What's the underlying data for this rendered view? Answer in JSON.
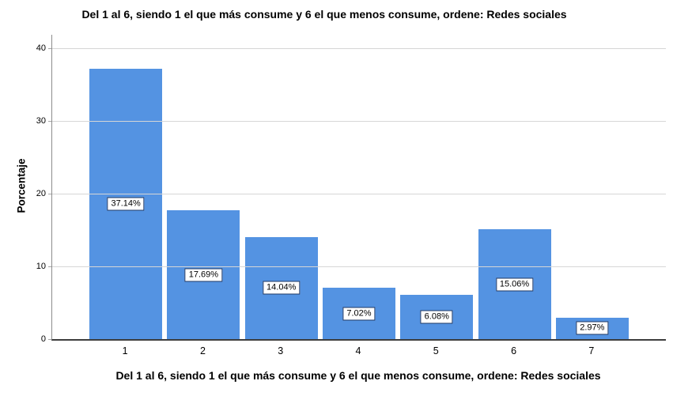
{
  "chart_data": {
    "type": "bar",
    "title": "Del 1 al 6, siendo 1 el que más consume y 6 el que menos consume, ordene: Redes sociales",
    "xlabel": "Del 1 al 6, siendo 1 el que más consume y 6 el que menos consume, ordene: Redes sociales",
    "ylabel": "Porcentaje",
    "categories": [
      "1",
      "2",
      "3",
      "4",
      "5",
      "6",
      "7"
    ],
    "values": [
      37.14,
      17.69,
      14.04,
      7.02,
      6.08,
      15.06,
      2.97
    ],
    "data_labels": [
      "37.14%",
      "17.69%",
      "14.04%",
      "7.02%",
      "6.08%",
      "15.06%",
      "2.97%"
    ],
    "y_ticks": [
      0,
      10,
      20,
      30,
      40
    ],
    "ylim": [
      0,
      41.8
    ],
    "grid": true,
    "legend_position": "none",
    "bar_color": "#5493e2",
    "label_box_border_color": "#1f3864",
    "gridline_color": "#d6d6d6"
  }
}
